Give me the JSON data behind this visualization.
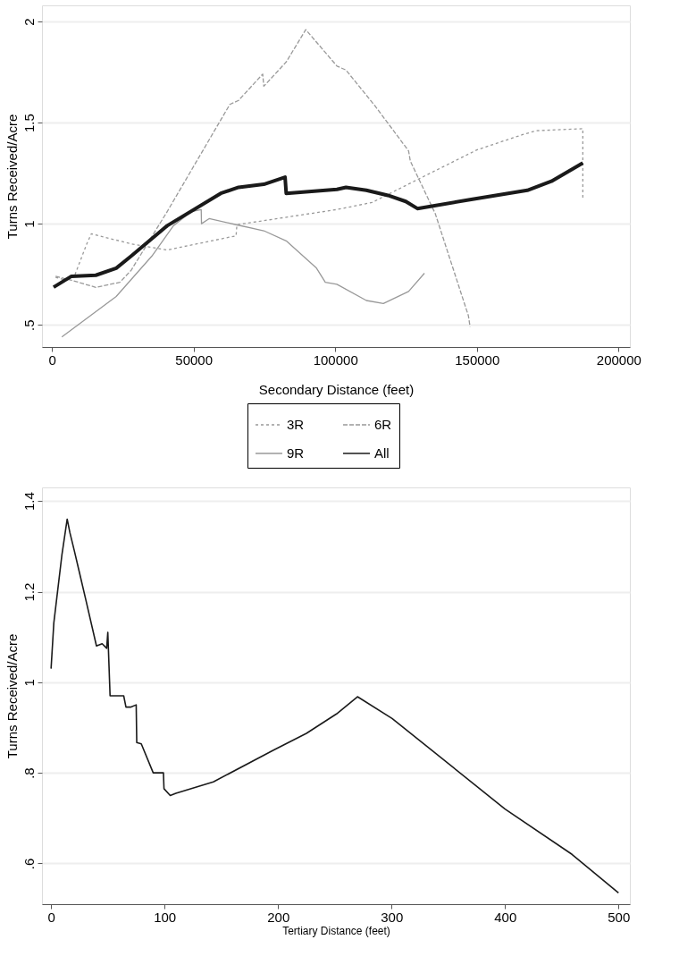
{
  "chart_data": [
    {
      "type": "line",
      "xlabel": "Secondary Distance (feet)",
      "ylabel": "Turns Received/Acre",
      "xlim": [
        -3500,
        204000
      ],
      "xticks": [
        0,
        50000,
        100000,
        150000,
        200000
      ],
      "ylim": [
        0.39,
        2.08
      ],
      "yticks": [
        {
          "value": 0.5,
          "label": ".5"
        },
        1,
        1.5,
        2
      ],
      "grid": "y",
      "legend": "bottom",
      "marker": "none",
      "series": [
        {
          "name": "3R",
          "color": "#999999",
          "line_style": "dotted",
          "x": [
            1300,
            5000,
            8200,
            12300,
            13900,
            28000,
            40700,
            65000,
            65300,
            100600,
            113000,
            130000,
            150000,
            166000,
            171000,
            187400,
            187400
          ],
          "values": [
            0.735,
            0.72,
            0.75,
            0.9,
            0.95,
            0.9,
            0.87,
            0.94,
            0.995,
            1.07,
            1.105,
            1.225,
            1.365,
            1.44,
            1.46,
            1.47,
            1.12
          ]
        },
        {
          "name": "6R",
          "color": "#999999",
          "line_style": "dashed",
          "x": [
            1300,
            7000,
            15500,
            24000,
            28000,
            40700,
            62800,
            65900,
            74400,
            74800,
            82700,
            89600,
            100600,
            103800,
            114200,
            125900,
            126500,
            135300,
            147000,
            147600
          ],
          "values": [
            0.74,
            0.72,
            0.685,
            0.71,
            0.77,
            1.06,
            1.59,
            1.61,
            1.74,
            1.68,
            1.8,
            1.96,
            1.78,
            1.76,
            1.58,
            1.36,
            1.31,
            1.05,
            0.545,
            0.49
          ]
        },
        {
          "name": "9R",
          "color": "#999999",
          "line_style": "solid",
          "x": [
            3500,
            22700,
            35300,
            42900,
            49200,
            52700,
            52800,
            55500,
            65000,
            74800,
            82700,
            93400,
            96500,
            100600,
            111000,
            117000,
            125900,
            131500
          ],
          "values": [
            0.44,
            0.64,
            0.84,
            0.99,
            1.06,
            1.07,
            1.0,
            1.025,
            0.995,
            0.965,
            0.915,
            0.78,
            0.71,
            0.7,
            0.62,
            0.605,
            0.665,
            0.755
          ]
        },
        {
          "name": "All",
          "color": "#1a1a1a",
          "line_style": "solid",
          "x": [
            600,
            6900,
            15500,
            22700,
            28000,
            40700,
            59600,
            65900,
            74800,
            82300,
            82700,
            100600,
            103800,
            111000,
            118600,
            124900,
            129000,
            148000,
            167800,
            176300,
            187400
          ],
          "values": [
            0.686,
            0.74,
            0.745,
            0.78,
            0.84,
            0.99,
            1.15,
            1.18,
            1.195,
            1.23,
            1.15,
            1.17,
            1.18,
            1.165,
            1.14,
            1.11,
            1.075,
            1.12,
            1.165,
            1.21,
            1.3
          ]
        }
      ]
    },
    {
      "type": "line",
      "xlabel": "Tertiary Distance (feet)",
      "ylabel": "Turns Received/Acre",
      "xlim": [
        -8,
        510
      ],
      "xticks": [
        0,
        100,
        200,
        300,
        400,
        500
      ],
      "ylim": [
        0.51,
        1.43
      ],
      "yticks": [
        {
          "value": 0.6,
          "label": ".6"
        },
        {
          "value": 0.8,
          "label": ".8"
        },
        1,
        1.2,
        1.4
      ],
      "grid": "y",
      "marker": "none",
      "series": [
        {
          "color": "#1a1a1a",
          "line_style": "solid",
          "x": [
            0,
            2.4,
            9.5,
            14.2,
            16.6,
            20.5,
            25.2,
            30.8,
            40,
            45,
            49,
            50,
            52,
            64,
            66,
            70,
            75,
            75.5,
            79.5,
            90,
            99,
            99.5,
            105,
            110,
            143,
            196,
            225,
            251.5,
            270,
            300.5,
            400,
            459,
            500
          ],
          "values": [
            1.03,
            1.13,
            1.28,
            1.36,
            1.33,
            1.29,
            1.24,
            1.18,
            1.08,
            1.085,
            1.075,
            1.11,
            0.97,
            0.97,
            0.945,
            0.945,
            0.95,
            0.867,
            0.864,
            0.8,
            0.8,
            0.765,
            0.75,
            0.755,
            0.78,
            0.85,
            0.887,
            0.93,
            0.968,
            0.92,
            0.72,
            0.62,
            0.535
          ]
        }
      ]
    }
  ]
}
